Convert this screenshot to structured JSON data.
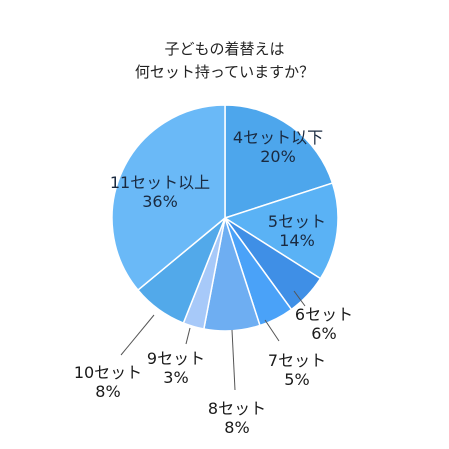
{
  "chart_data": {
    "type": "pie",
    "title_lines": [
      "子どもの着替えは",
      "何セット持っていますか？"
    ],
    "slices": [
      {
        "category": "4セット以下",
        "value": 20,
        "label": "20%",
        "color": "#4da6ec"
      },
      {
        "category": "5セット",
        "value": 14,
        "label": "14%",
        "color": "#5ab2f5"
      },
      {
        "category": "6セット",
        "value": 6,
        "label": "6%",
        "color": "#3f8fe6"
      },
      {
        "category": "7セット",
        "value": 5,
        "label": "5%",
        "color": "#4aa2f8"
      },
      {
        "category": "8セット",
        "value": 8,
        "label": "8%",
        "color": "#6eaef2"
      },
      {
        "category": "9セット",
        "value": 3,
        "label": "3%",
        "color": "#a7c9f9"
      },
      {
        "category": "10セット",
        "value": 8,
        "label": "8%",
        "color": "#52a9ea"
      },
      {
        "category": "11セット以上",
        "value": 36,
        "label": "36%",
        "color": "#6ab9f7"
      }
    ],
    "start": "top",
    "direction": "clockwise",
    "legend": "none"
  }
}
